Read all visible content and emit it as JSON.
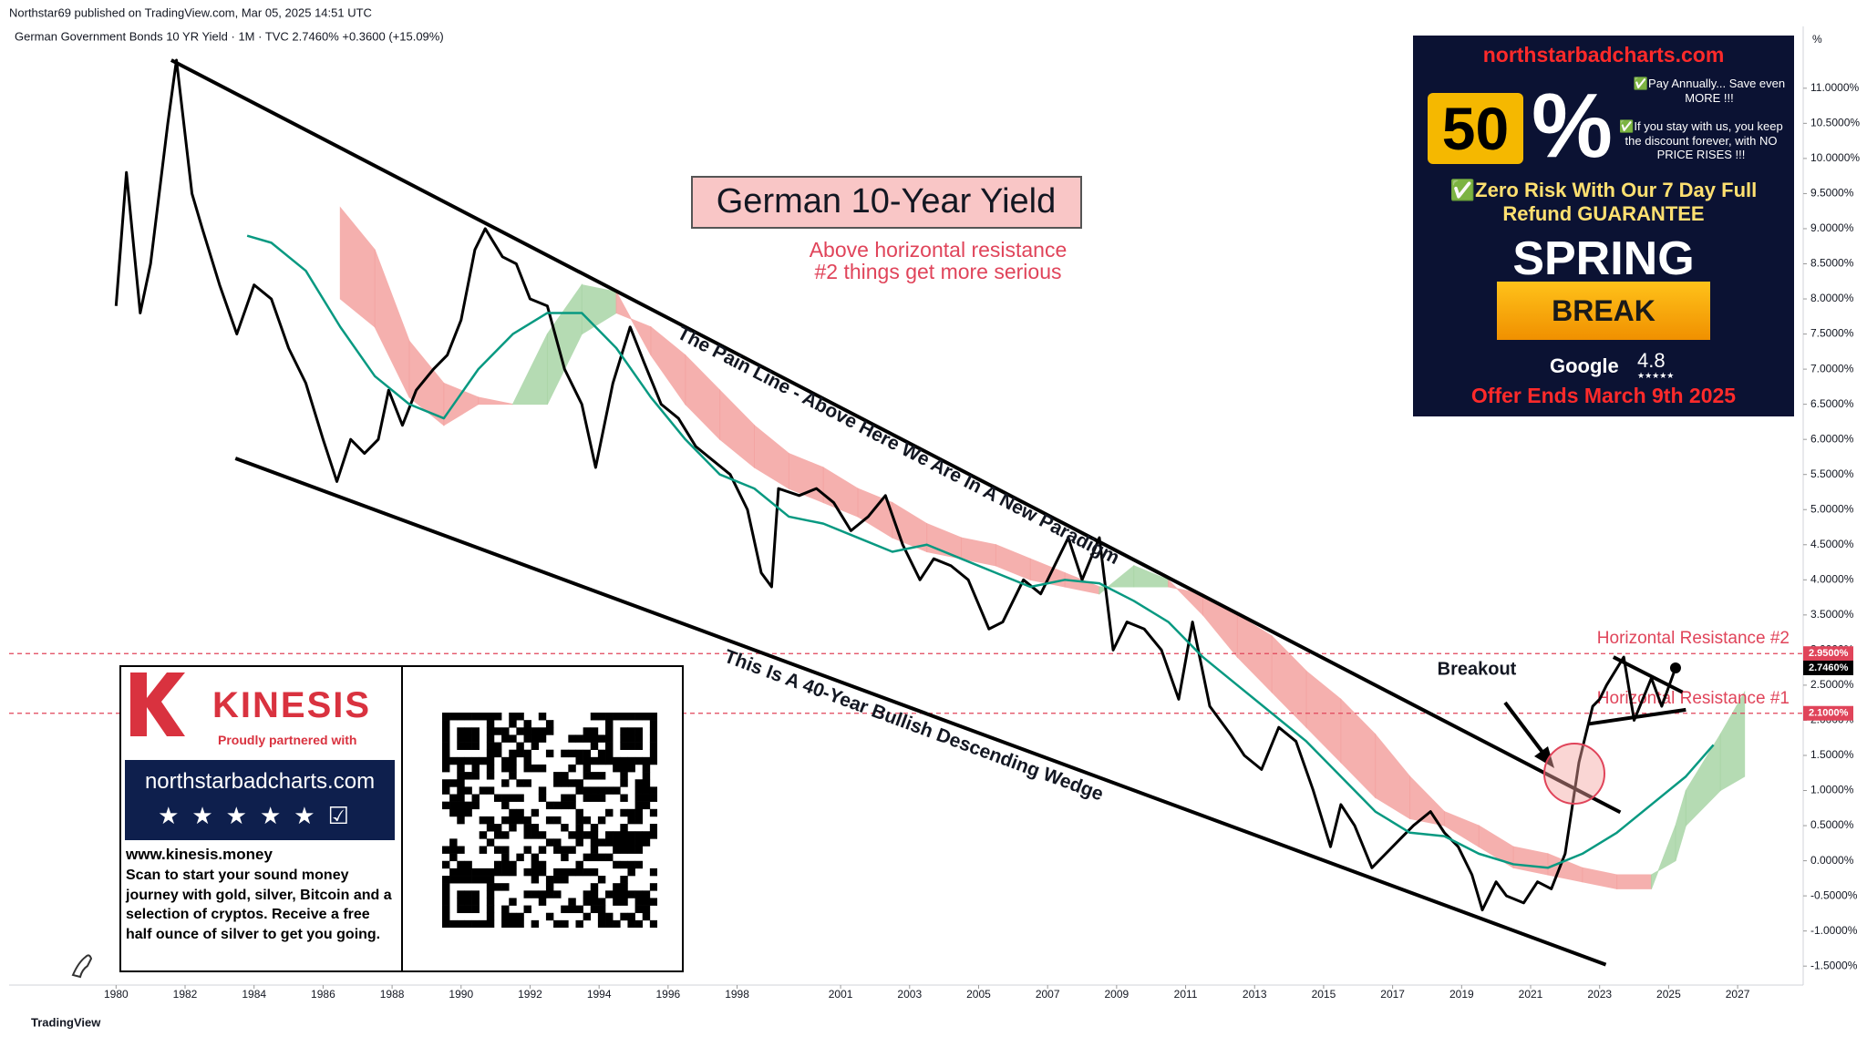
{
  "chart_data": {
    "type": "line",
    "header": {
      "publisher": "Northstar69 published on TradingView.com, Mar 05, 2025 14:51 UTC",
      "symbol_line": "German Government Bonds 10 YR Yield · 1M · TVC  2.7460%  +0.3600 (+15.09%)",
      "unit": "%",
      "footer": "TradingView"
    },
    "title": "German 10-Year Yield",
    "annotations": {
      "note_line1": "Above horizontal resistance",
      "note_line2": "#2 things get more serious",
      "pain_line": "The Pain Line - Above Here We Are In A New Paradigm",
      "wedge": "This Is A 40-Year Bullish Descending Wedge",
      "breakout": "Breakout"
    },
    "xlim": [
      1976.9,
      2028.9
    ],
    "ylim": [
      -1.77,
      11.88
    ],
    "xticks": [
      1980,
      1982,
      1984,
      1986,
      1988,
      1990,
      1992,
      1994,
      1996,
      1998,
      2001,
      2003,
      2005,
      2007,
      2009,
      2011,
      2013,
      2015,
      2017,
      2019,
      2021,
      2023,
      2025,
      2027
    ],
    "yticks": [
      {
        "value": -1.5,
        "label": "-1.5000%"
      },
      {
        "value": -1,
        "label": "-1.0000%"
      },
      {
        "value": -0.5,
        "label": "-0.5000%"
      },
      {
        "value": 0,
        "label": "0.0000%"
      },
      {
        "value": 0.5,
        "label": "0.5000%"
      },
      {
        "value": 1,
        "label": "1.0000%"
      },
      {
        "value": 1.5,
        "label": "1.5000%"
      },
      {
        "value": 2,
        "label": "2.0000%"
      },
      {
        "value": 2.5,
        "label": "2.5000%"
      },
      {
        "value": 3,
        "label": "3.0000%"
      },
      {
        "value": 3.5,
        "label": "3.5000%"
      },
      {
        "value": 4,
        "label": "4.0000%"
      },
      {
        "value": 4.5,
        "label": "4.5000%"
      },
      {
        "value": 5,
        "label": "5.0000%"
      },
      {
        "value": 5.5,
        "label": "5.5000%"
      },
      {
        "value": 6,
        "label": "6.0000%"
      },
      {
        "value": 6.5,
        "label": "6.5000%"
      },
      {
        "value": 7,
        "label": "7.0000%"
      },
      {
        "value": 7.5,
        "label": "7.5000%"
      },
      {
        "value": 8,
        "label": "8.0000%"
      },
      {
        "value": 8.5,
        "label": "8.5000%"
      },
      {
        "value": 9,
        "label": "9.0000%"
      },
      {
        "value": 9.5,
        "label": "9.5000%"
      },
      {
        "value": 10,
        "label": "10.0000%"
      },
      {
        "value": 10.5,
        "label": "10.5000%"
      },
      {
        "value": 11,
        "label": "11.0000%"
      }
    ],
    "series": [
      {
        "color": "#000000",
        "width": 3,
        "x": [
          1980.0,
          1980.3,
          1980.7,
          1981.0,
          1981.5,
          1981.75,
          1982.2,
          1982.5,
          1983.0,
          1983.5,
          1984.0,
          1984.5,
          1985.0,
          1985.5,
          1986.0,
          1986.4,
          1986.8,
          1987.2,
          1987.6,
          1987.9,
          1988.3,
          1988.7,
          1989.2,
          1989.6,
          1990.0,
          1990.4,
          1990.7,
          1991.2,
          1991.6,
          1992.0,
          1992.5,
          1993.0,
          1993.5,
          1993.9,
          1994.4,
          1994.9,
          1995.3,
          1995.8,
          1996.3,
          1996.8,
          1997.3,
          1997.8,
          1998.3,
          1998.7,
          1999.0,
          1999.2,
          1999.8,
          2000.3,
          2000.8,
          2001.3,
          2001.8,
          2002.3,
          2002.8,
          2003.3,
          2003.7,
          2004.2,
          2004.7,
          2005.3,
          2005.7,
          2006.3,
          2006.8,
          2007.3,
          2007.6,
          2008.0,
          2008.5,
          2008.9,
          2009.3,
          2009.8,
          2010.3,
          2010.8,
          2011.2,
          2011.7,
          2012.3,
          2012.7,
          2013.2,
          2013.7,
          2014.2,
          2014.7,
          2015.2,
          2015.5,
          2015.9,
          2016.4,
          2016.8,
          2017.2,
          2017.6,
          2018.1,
          2018.5,
          2018.9,
          2019.3,
          2019.6,
          2020.0,
          2020.3,
          2020.8,
          2021.2,
          2021.6,
          2022.0,
          2022.4,
          2022.8,
          2023.0,
          2023.2,
          2023.7,
          2024.0,
          2024.5,
          2024.8,
          2025.2
        ],
        "values": [
          7.9,
          9.8,
          7.8,
          8.5,
          10.5,
          11.4,
          9.5,
          9.0,
          8.2,
          7.5,
          8.2,
          8.0,
          7.3,
          6.8,
          6.0,
          5.4,
          6.0,
          5.8,
          6.0,
          6.7,
          6.2,
          6.7,
          7.0,
          7.2,
          7.7,
          8.7,
          9.0,
          8.6,
          8.5,
          8.0,
          7.9,
          7.0,
          6.5,
          5.6,
          6.8,
          7.6,
          7.1,
          6.5,
          6.3,
          5.9,
          5.7,
          5.5,
          5.0,
          4.1,
          3.9,
          5.3,
          5.2,
          5.3,
          5.1,
          4.7,
          4.9,
          5.2,
          4.5,
          4.0,
          4.3,
          4.2,
          4.0,
          3.3,
          3.4,
          4.0,
          3.8,
          4.3,
          4.6,
          4.0,
          4.6,
          3.0,
          3.4,
          3.3,
          3.0,
          2.3,
          3.4,
          2.2,
          1.8,
          1.5,
          1.3,
          1.9,
          1.7,
          1.0,
          0.2,
          0.8,
          0.5,
          -0.1,
          0.1,
          0.3,
          0.5,
          0.7,
          0.4,
          0.2,
          -0.2,
          -0.7,
          -0.3,
          -0.5,
          -0.6,
          -0.3,
          -0.4,
          0.1,
          1.4,
          2.2,
          2.3,
          2.5,
          2.9,
          2.0,
          2.6,
          2.2,
          2.746
        ]
      },
      {
        "color": "#089981",
        "width": 2.5,
        "x": [
          1983.8,
          1984.5,
          1985.5,
          1986.5,
          1987.5,
          1988.5,
          1989.5,
          1990.5,
          1991.5,
          1992.5,
          1993.5,
          1994.5,
          1995.5,
          1996.5,
          1997.5,
          1998.5,
          1999.5,
          2000.5,
          2001.5,
          2002.5,
          2003.5,
          2004.5,
          2005.5,
          2006.5,
          2007.5,
          2008.5,
          2009.5,
          2010.5,
          2011.5,
          2012.5,
          2013.5,
          2014.5,
          2015.5,
          2016.5,
          2017.5,
          2018.5,
          2019.5,
          2020.5,
          2021.5,
          2022.5,
          2023.5,
          2024.5,
          2025.5,
          2026.3
        ],
        "values": [
          8.9,
          8.8,
          8.4,
          7.6,
          6.9,
          6.5,
          6.3,
          7.0,
          7.5,
          7.8,
          7.8,
          7.3,
          6.6,
          6.0,
          5.5,
          5.3,
          4.9,
          4.8,
          4.6,
          4.4,
          4.5,
          4.3,
          4.1,
          3.9,
          4.0,
          3.95,
          3.7,
          3.4,
          2.9,
          2.5,
          2.1,
          1.7,
          1.2,
          0.7,
          0.4,
          0.35,
          0.1,
          -0.05,
          -0.1,
          0.1,
          0.4,
          0.8,
          1.2,
          1.65
        ]
      }
    ],
    "cloud": {
      "up_color": "#a9d5a6",
      "down_color": "#f4a3a0",
      "x": [
        1986.5,
        1987.5,
        1988.5,
        1989.5,
        1990.5,
        1991.5,
        1992.5,
        1993.5,
        1994.5,
        1995.5,
        1996.5,
        1997.5,
        1998.5,
        1999.5,
        2000.5,
        2001.5,
        2002.5,
        2003.5,
        2004.5,
        2005.5,
        2006.5,
        2007.5,
        2008.5,
        2009.5,
        2010.5,
        2011.5,
        2012.5,
        2013.5,
        2014.5,
        2015.5,
        2016.5,
        2017.5,
        2018.5,
        2019.5,
        2020.5,
        2021.5,
        2022.5,
        2023.5,
        2024.5,
        2025.2,
        2025.5,
        2026.5,
        2027.2
      ],
      "span_a": [
        8.0,
        7.6,
        6.6,
        6.2,
        6.5,
        6.5,
        7.5,
        8.2,
        8.1,
        7.2,
        6.5,
        6.0,
        5.6,
        5.3,
        5.1,
        4.9,
        4.6,
        4.4,
        4.3,
        4.2,
        4.0,
        3.9,
        3.8,
        4.2,
        4.0,
        3.5,
        2.9,
        2.4,
        1.9,
        1.4,
        0.9,
        0.6,
        0.5,
        0.2,
        -0.1,
        -0.2,
        -0.3,
        -0.4,
        -0.4,
        0.5,
        1.0,
        1.8,
        2.4
      ],
      "span_b": [
        9.3,
        8.7,
        7.4,
        6.8,
        6.6,
        6.5,
        6.5,
        7.5,
        7.8,
        7.6,
        7.2,
        6.7,
        6.2,
        5.8,
        5.6,
        5.3,
        5.1,
        4.8,
        4.6,
        4.5,
        4.3,
        4.1,
        3.9,
        3.9,
        3.9,
        3.8,
        3.5,
        3.2,
        2.7,
        2.3,
        1.8,
        1.2,
        0.7,
        0.5,
        0.2,
        0.1,
        -0.1,
        -0.2,
        -0.2,
        0.0,
        0.5,
        1.0,
        1.2
      ]
    },
    "trendlines": [
      {
        "x": [
          1981.6,
          2023.6
        ],
        "y": [
          11.4,
          0.69
        ]
      },
      {
        "x": [
          1983.46,
          2023.18
        ],
        "y": [
          5.73,
          -1.48
        ]
      },
      {
        "x": [
          2023.4,
          2025.4
        ],
        "y": [
          2.9,
          2.4
        ]
      },
      {
        "x": [
          2022.7,
          2025.5
        ],
        "y": [
          1.95,
          2.15
        ]
      }
    ],
    "levels": [
      {
        "value": 2.95,
        "label": "2.9500%",
        "text": "Horizontal Resistance #2",
        "color": "#e0445a"
      },
      {
        "value": 2.1,
        "label": "2.1000%",
        "text": "Horizontal Resistance #1",
        "color": "#e0445a"
      }
    ],
    "last_price": {
      "value": 2.746,
      "label": "2.7460%"
    },
    "ads": {
      "northstar": {
        "site": "northstarbadcharts.com",
        "discount": "50",
        "percent": "%",
        "bullet1": "✅Pay Annually... Save even MORE !!!",
        "bullet2": "✅If you stay with us, you keep the discount forever, with NO PRICE RISES !!!",
        "guarantee": "✅Zero Risk With Our 7 Day Full Refund GUARANTEE",
        "spring": "SPRING",
        "break": "BREAK",
        "google": "Google",
        "rating": "4.8",
        "stars": "★★★★★",
        "offer": "Offer Ends March 9th 2025"
      },
      "kinesis": {
        "brand": "KINESIS",
        "tagline": "Proudly partnered with",
        "site": "northstarbadcharts.com",
        "url": "www.kinesis.money",
        "body": "Scan to start your sound money journey with gold, silver, Bitcoin and a selection of cryptos. Receive a free half ounce of silver to get you going."
      }
    }
  }
}
